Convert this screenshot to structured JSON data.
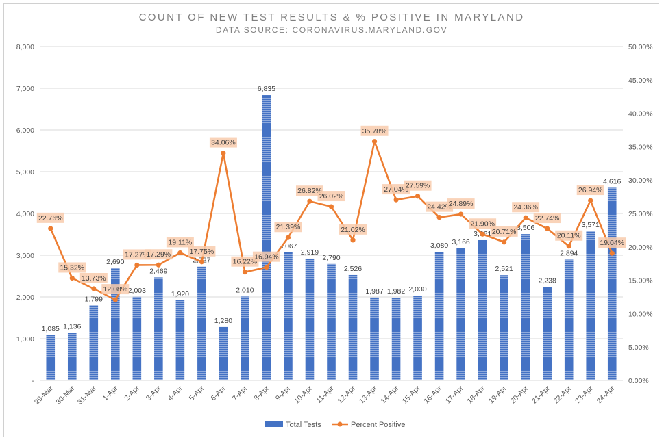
{
  "chart_data": {
    "type": "bar",
    "title": "COUNT OF NEW TEST RESULTS & % POSITIVE IN MARYLAND",
    "subtitle": "DATA SOURCE: CORONAVIRUS.MARYLAND.GOV",
    "categories": [
      "29-Mar",
      "30-Mar",
      "31-Mar",
      "1-Apr",
      "2-Apr",
      "3-Apr",
      "4-Apr",
      "5-Apr",
      "6-Apr",
      "7-Apr",
      "8-Apr",
      "9-Apr",
      "10-Apr",
      "11-Apr",
      "12-Apr",
      "13-Apr",
      "14-Apr",
      "15-Apr",
      "16-Apr",
      "17-Apr",
      "18-Apr",
      "19-Apr",
      "20-Apr",
      "21-Apr",
      "22-Apr",
      "23-Apr",
      "24-Apr"
    ],
    "series": [
      {
        "name": "Total Tests",
        "type": "bar",
        "axis": "left",
        "color": "#4472c4",
        "values": [
          1085,
          1136,
          1799,
          2690,
          2003,
          2469,
          1920,
          2727,
          1280,
          2010,
          6835,
          3067,
          2919,
          2790,
          2526,
          1987,
          1982,
          2030,
          3080,
          3166,
          3361,
          2521,
          3506,
          2238,
          2894,
          3571,
          4616
        ],
        "labels": [
          "1,085",
          "1,136",
          "1,799",
          "2,690",
          "2,003",
          "2,469",
          "1,920",
          "2,727",
          "1,280",
          "2,010",
          "6,835",
          "3,067",
          "2,919",
          "2,790",
          "2,526",
          "1,987",
          "1,982",
          "2,030",
          "3,080",
          "3,166",
          "3,361",
          "2,521",
          "3,506",
          "2,238",
          "2,894",
          "3,571",
          "4,616"
        ]
      },
      {
        "name": "Percent Positive",
        "type": "line",
        "axis": "right",
        "color": "#ed7d31",
        "values": [
          22.76,
          15.32,
          13.73,
          12.08,
          17.27,
          17.29,
          19.11,
          17.75,
          34.06,
          16.22,
          16.94,
          21.39,
          26.82,
          26.02,
          21.02,
          35.78,
          27.04,
          27.59,
          24.42,
          24.89,
          21.9,
          20.71,
          24.36,
          22.74,
          20.11,
          26.94,
          19.04
        ],
        "labels": [
          "22.76%",
          "15.32%",
          "13.73%",
          "12.08%",
          "17.27%",
          "17.29%",
          "19.11%",
          "17.75%",
          "34.06%",
          "16.22%",
          "16.94%",
          "21.39%",
          "26.82%",
          "26.02%",
          "21.02%",
          "35.78%",
          "27.04%",
          "27.59%",
          "24.42%",
          "24.89%",
          "21.90%",
          "20.71%",
          "24.36%",
          "22.74%",
          "20.11%",
          "26.94%",
          "19.04%"
        ]
      }
    ],
    "y_left": {
      "min": 0,
      "max": 8000,
      "ticks": [
        0,
        1000,
        2000,
        3000,
        4000,
        5000,
        6000,
        7000,
        8000
      ],
      "tick_labels": [
        "-",
        "1,000",
        "2,000",
        "3,000",
        "4,000",
        "5,000",
        "6,000",
        "7,000",
        "8,000"
      ]
    },
    "y_right": {
      "min": 0,
      "max": 50,
      "ticks": [
        0,
        5,
        10,
        15,
        20,
        25,
        30,
        35,
        40,
        45,
        50
      ],
      "tick_labels": [
        "0.00%",
        "5.00%",
        "10.00%",
        "15.00%",
        "20.00%",
        "25.00%",
        "30.00%",
        "35.00%",
        "40.00%",
        "45.00%",
        "50.00%"
      ]
    },
    "grid": true,
    "legend_position": "bottom"
  }
}
